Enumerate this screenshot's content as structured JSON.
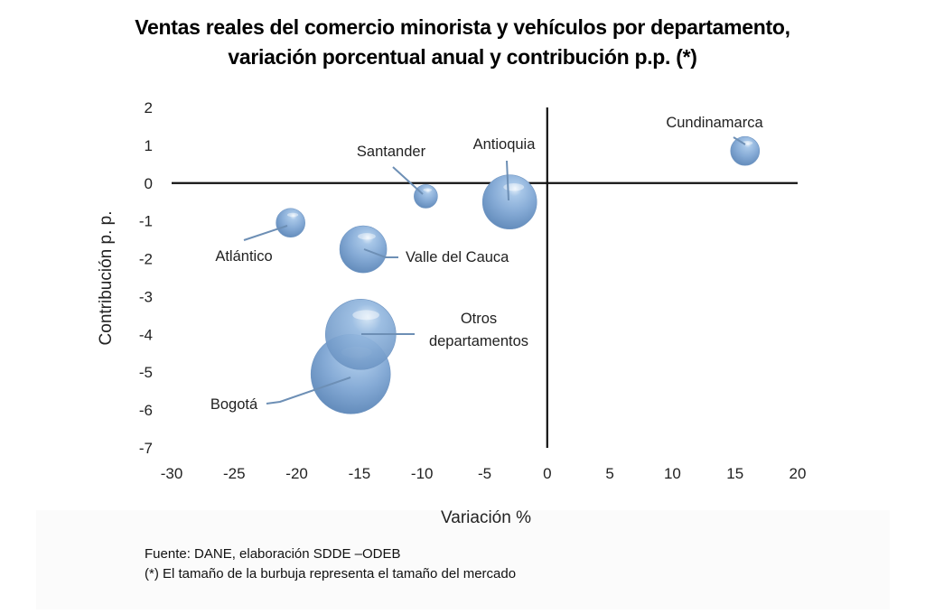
{
  "chart_data": {
    "type": "bubble",
    "title_lines": [
      "Ventas reales del comercio minorista y vehículos por departamento,",
      "variación porcentual anual y contribución p.p.  (*)"
    ],
    "xlabel": "Variación %",
    "ylabel": "Contribución p. p.",
    "xlim": [
      -30,
      20
    ],
    "ylim": [
      -7,
      2
    ],
    "x_ticks": [
      -30,
      -25,
      -20,
      -15,
      -10,
      -5,
      0,
      5,
      10,
      15,
      20
    ],
    "y_ticks": [
      2,
      1,
      0,
      -1,
      -2,
      -3,
      -4,
      -5,
      -6,
      -7
    ],
    "grid": false,
    "bubble_color": "#7ea6d3",
    "bubble_size_meaning": "tamaño del mercado (relative)",
    "points": [
      {
        "name": "Cundinamarca",
        "x": 15.8,
        "y": 0.85,
        "size": 16
      },
      {
        "name": "Antioquia",
        "x": -3.0,
        "y": -0.5,
        "size": 30
      },
      {
        "name": "Santander",
        "x": -9.7,
        "y": -0.35,
        "size": 13
      },
      {
        "name": "Atlántico",
        "x": -20.5,
        "y": -1.05,
        "size": 16
      },
      {
        "name": "Valle del Cauca",
        "x": -14.7,
        "y": -1.75,
        "size": 26
      },
      {
        "name": "Bogotá",
        "x": -15.7,
        "y": -5.05,
        "size": 44
      },
      {
        "name": "Otros departamentos",
        "x": -14.9,
        "y": -4.0,
        "size": 39
      }
    ]
  },
  "footnotes": [
    "Fuente: DANE, elaboración SDDE –ODEB",
    "(*) El tamaño de la burbuja representa el tamaño del mercado"
  ]
}
